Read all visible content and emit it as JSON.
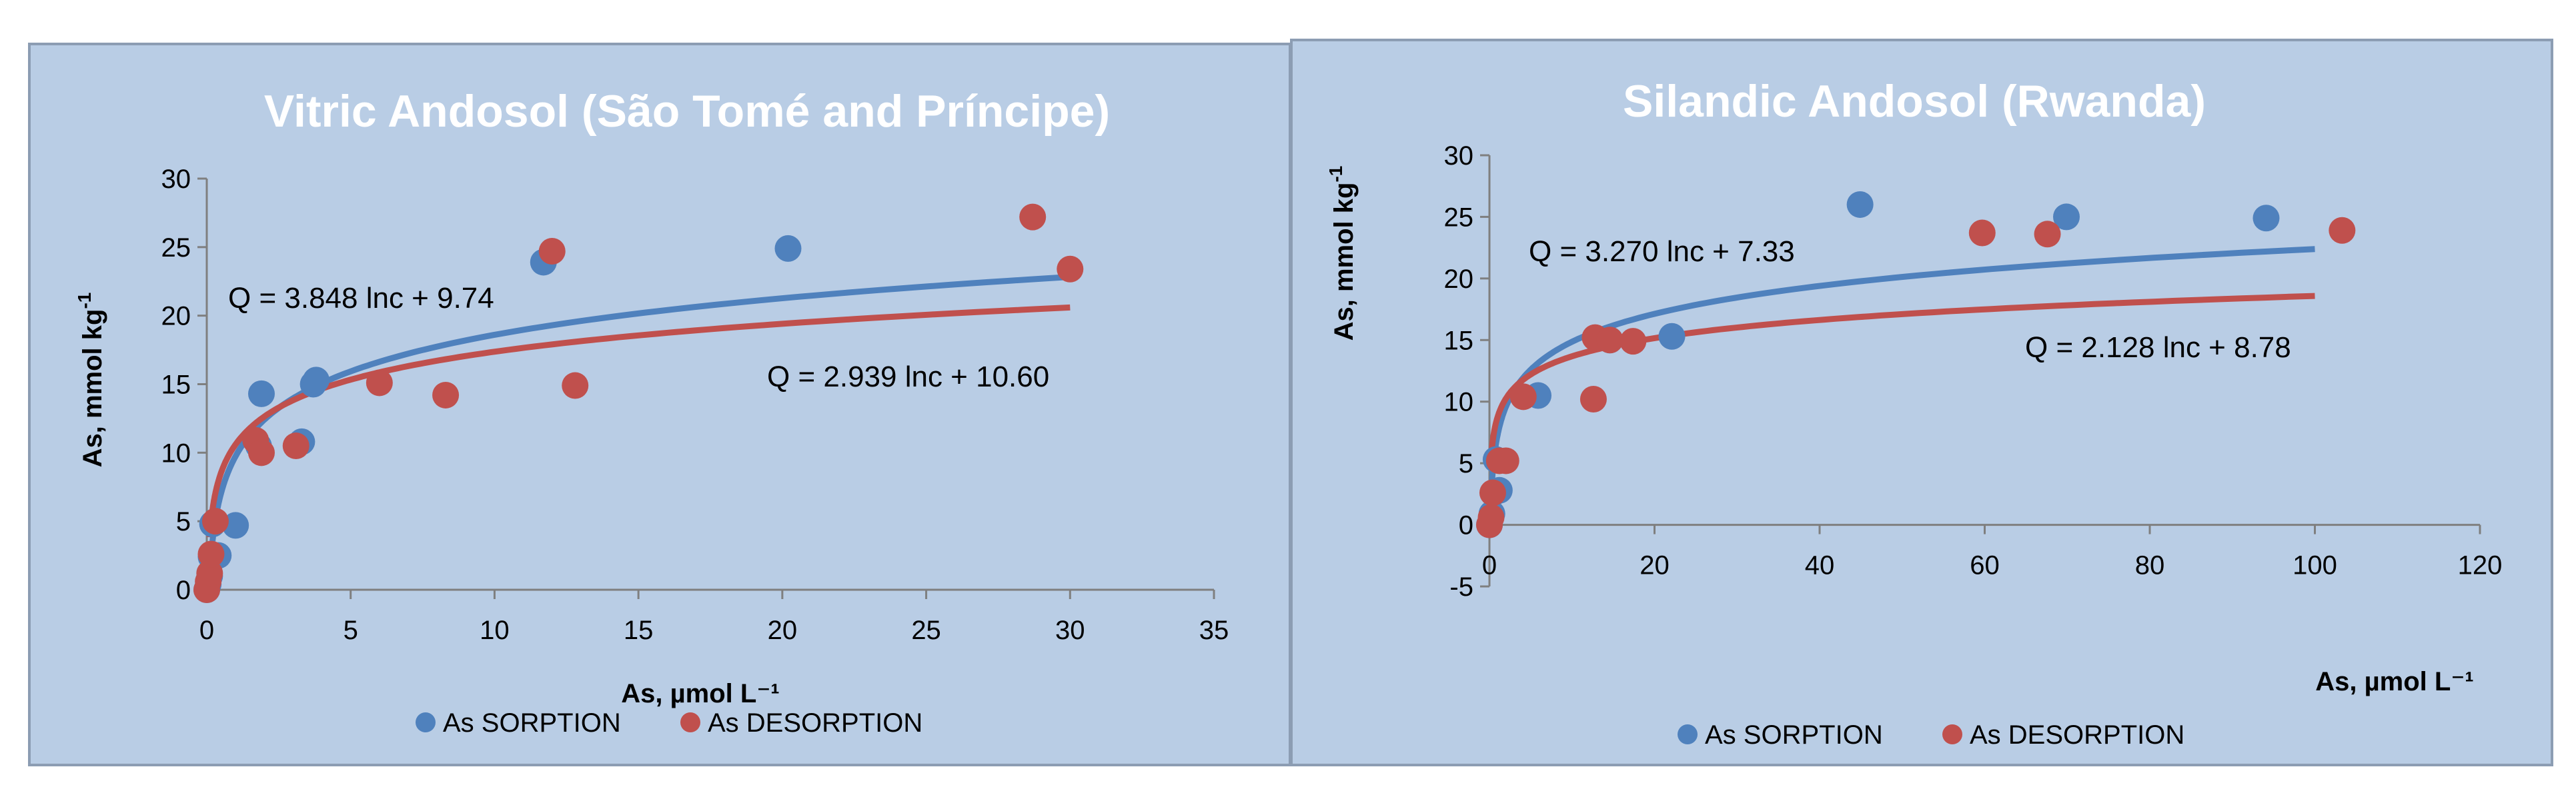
{
  "colors": {
    "panel_bg": "#b9cde5",
    "panel_border": "#8c9db3",
    "sorption": "#4f81bd",
    "desorption": "#c0504d",
    "title_text": "#ffffff",
    "text": "#000000",
    "axis": "#7f7f7f"
  },
  "chart_data": [
    {
      "type": "scatter",
      "title": "Vitric Andosol (São Tomé and Príncipe)",
      "xlabel": "As, µmol L⁻¹",
      "ylabel_main": "As, mmol kg",
      "ylabel_sup": "-1",
      "xlim": [
        0,
        35
      ],
      "ylim": [
        0,
        30
      ],
      "xticks": [
        0,
        5,
        10,
        15,
        20,
        25,
        30,
        35
      ],
      "yticks": [
        0,
        5,
        10,
        15,
        20,
        25,
        30
      ],
      "legend_position": "bottom",
      "series": [
        {
          "name": "As SORPTION",
          "color": "#4f81bd",
          "points": [
            [
              0.0,
              0.0
            ],
            [
              0.05,
              0.4
            ],
            [
              0.1,
              1.0
            ],
            [
              0.15,
              2.4
            ],
            [
              0.2,
              4.8
            ],
            [
              0.4,
              2.5
            ],
            [
              1.0,
              4.7
            ],
            [
              1.8,
              10.5
            ],
            [
              1.9,
              14.3
            ],
            [
              3.3,
              10.8
            ],
            [
              3.7,
              15.0
            ],
            [
              3.8,
              15.3
            ],
            [
              11.7,
              23.9
            ],
            [
              20.2,
              24.9
            ]
          ]
        },
        {
          "name": "As DESORPTION",
          "color": "#c0504d",
          "points": [
            [
              0.0,
              0.0
            ],
            [
              0.05,
              0.6
            ],
            [
              0.1,
              1.2
            ],
            [
              0.15,
              2.6
            ],
            [
              0.3,
              5.0
            ],
            [
              1.7,
              10.9
            ],
            [
              1.9,
              10.0
            ],
            [
              3.1,
              10.5
            ],
            [
              6.0,
              15.1
            ],
            [
              8.3,
              14.2
            ],
            [
              12.0,
              24.7
            ],
            [
              12.8,
              14.9
            ],
            [
              28.7,
              27.2
            ],
            [
              30.0,
              23.4
            ]
          ]
        }
      ],
      "fits": [
        {
          "series": "As SORPTION",
          "a": 3.848,
          "b": 9.74,
          "x_range": [
            0.2,
            30
          ],
          "equation": "Q = 3.848 lnc + 9.74",
          "label_position": "upper-left"
        },
        {
          "series": "As DESORPTION",
          "a": 2.939,
          "b": 10.6,
          "x_range": [
            0.1,
            30
          ],
          "equation": "Q = 2.939 lnc + 10.60",
          "label_position": "right"
        }
      ]
    },
    {
      "type": "scatter",
      "title": "Silandic Andosol (Rwanda)",
      "xlabel": "As, µmol L⁻¹",
      "ylabel_main": "As, mmol kg",
      "ylabel_sup": "-1",
      "xlim": [
        0,
        120
      ],
      "ylim": [
        -5,
        30
      ],
      "xticks": [
        0,
        20,
        40,
        60,
        80,
        100,
        120
      ],
      "yticks": [
        -5,
        0,
        5,
        10,
        15,
        20,
        25,
        30
      ],
      "legend_position": "bottom",
      "series": [
        {
          "name": "As SORPTION",
          "color": "#4f81bd",
          "points": [
            [
              0.0,
              0.0
            ],
            [
              0.3,
              0.9
            ],
            [
              0.5,
              2.6
            ],
            [
              0.8,
              5.3
            ],
            [
              1.2,
              2.8
            ],
            [
              5.9,
              10.5
            ],
            [
              14.6,
              15.0
            ],
            [
              22.1,
              15.3
            ],
            [
              44.9,
              26.0
            ],
            [
              69.9,
              25.0
            ],
            [
              94.1,
              24.9
            ]
          ]
        },
        {
          "name": "As DESORPTION",
          "color": "#c0504d",
          "points": [
            [
              0.0,
              0.0
            ],
            [
              0.2,
              0.6
            ],
            [
              0.4,
              2.6
            ],
            [
              1.2,
              5.2
            ],
            [
              2.0,
              5.2
            ],
            [
              4.1,
              10.4
            ],
            [
              12.6,
              10.2
            ],
            [
              12.8,
              15.2
            ],
            [
              14.6,
              15.0
            ],
            [
              17.4,
              14.9
            ],
            [
              59.7,
              23.7
            ],
            [
              67.6,
              23.6
            ],
            [
              103.3,
              23.9
            ]
          ]
        }
      ],
      "fits": [
        {
          "series": "As SORPTION",
          "a": 3.27,
          "b": 7.33,
          "x_range": [
            0.2,
            100
          ],
          "equation": "Q = 3.270 lnc + 7.33",
          "label_position": "upper-left"
        },
        {
          "series": "As DESORPTION",
          "a": 2.128,
          "b": 8.78,
          "x_range": [
            0.2,
            100
          ],
          "equation": "Q = 2.128 lnc + 8.78",
          "label_position": "right"
        }
      ]
    }
  ]
}
